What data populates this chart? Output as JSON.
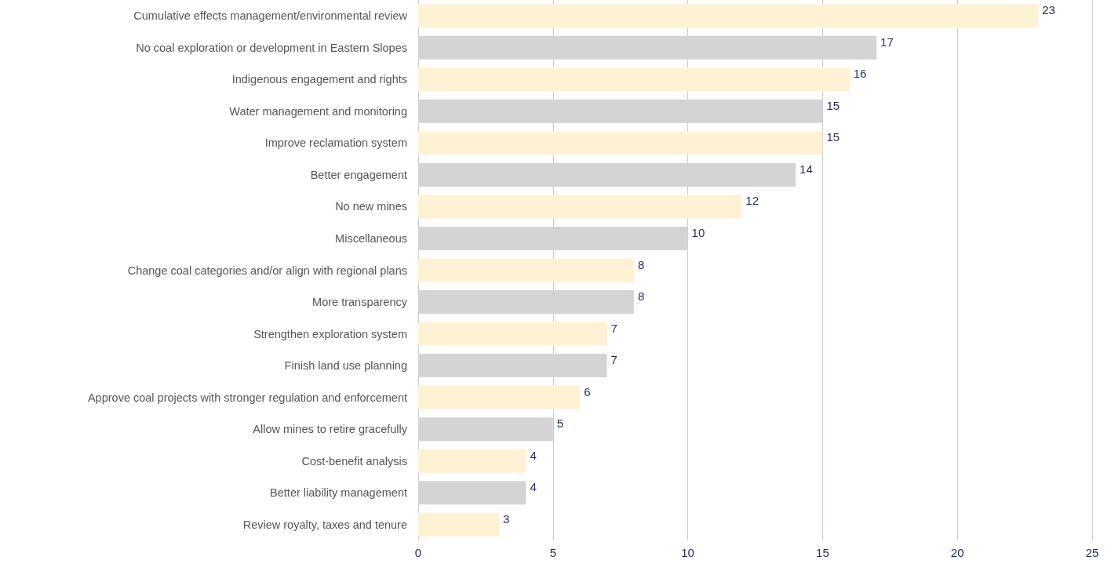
{
  "chart_data": {
    "type": "bar",
    "orientation": "horizontal",
    "categories": [
      "Cumulative effects management/environmental review",
      "No coal exploration or development in Eastern Slopes",
      "Indigenous engagement and rights",
      "Water management and monitoring",
      "Improve reclamation system",
      "Better engagement",
      "No new mines",
      "Miscellaneous",
      "Change coal categories and/or align with regional plans",
      "More transparency",
      "Strengthen exploration system",
      "Finish land use planning",
      "Approve coal projects with stronger regulation and enforcement",
      "Allow mines to retire gracefully",
      "Cost-benefit analysis",
      "Better liability management",
      "Review royalty, taxes and tenure"
    ],
    "values": [
      23,
      17,
      16,
      15,
      15,
      14,
      12,
      10,
      8,
      8,
      7,
      7,
      6,
      5,
      4,
      4,
      3
    ],
    "colors": [
      "#fff2d4",
      "#d4d4d7",
      "#fff2d4",
      "#d4d4d7",
      "#fff2d4",
      "#d4d4d7",
      "#fff2d4",
      "#d4d4d7",
      "#fff2d4",
      "#d4d4d7",
      "#fff2d4",
      "#d4d4d7",
      "#fff2d4",
      "#d4d4d7",
      "#fff2d4",
      "#d4d4d7",
      "#fff2d4"
    ],
    "xlim": [
      0,
      25
    ],
    "xticks": [
      0,
      5,
      10,
      15,
      20,
      25
    ],
    "grid": "x",
    "data_labels": true
  }
}
